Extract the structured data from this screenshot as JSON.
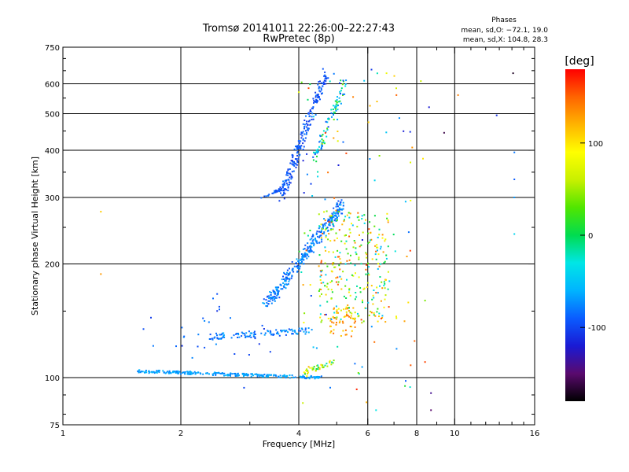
{
  "chart_data": {
    "type": "scatter",
    "title": "Tromsø 20141011 22:26:00–22:27:43",
    "subtitle": "RwPretec (8p)",
    "xlabel": "Frequency [MHz]",
    "ylabel": "Stationary phase Virtual Height [km]",
    "x_scale": "log",
    "y_scale": "log",
    "xlim": [
      1,
      16
    ],
    "ylim": [
      75,
      750
    ],
    "x_ticks": [
      1,
      2,
      4,
      6,
      8,
      10,
      16
    ],
    "y_ticks": [
      75,
      100,
      200,
      300,
      400,
      500,
      600,
      750
    ],
    "x_gridlines": [
      2,
      4,
      6,
      8,
      10
    ],
    "y_gridlines": [
      100,
      200,
      300,
      400,
      500,
      600
    ],
    "grid": true,
    "stats": {
      "heading": "Phases",
      "line1": "mean, sd,O: −72.1, 19.0",
      "line2": "mean, sd,X: 104.8, 28.3"
    },
    "colorbar": {
      "label": "[deg]",
      "min": -180,
      "max": 180,
      "ticks": [
        100,
        0,
        -100
      ],
      "colormap": [
        "#000000",
        "#5a0a6e",
        "#1a1ad4",
        "#0a5cff",
        "#00b4ff",
        "#00e6e6",
        "#00dc50",
        "#50e600",
        "#c8f000",
        "#ffff00",
        "#ffb400",
        "#ff6400",
        "#ff0000"
      ]
    },
    "clusters": [
      {
        "name": "e-trace",
        "shape": "line",
        "x_range": [
          1.55,
          4.6
        ],
        "y_range": [
          104,
          100
        ],
        "phase": [
          -80,
          -55
        ],
        "count": 260,
        "spread": 0.012
      },
      {
        "name": "e-trace-rise",
        "shape": "line",
        "x_range": [
          4.1,
          4.9
        ],
        "y_range": [
          103,
          110
        ],
        "phase": [
          -20,
          120
        ],
        "count": 40,
        "spread": 0.02
      },
      {
        "name": "o-trace-lower",
        "shape": "line",
        "x_range": [
          2.3,
          4.3
        ],
        "y_range": [
          128,
          133
        ],
        "phase": [
          -95,
          -60
        ],
        "count": 110,
        "spread": 0.025
      },
      {
        "name": "o-trace-middle",
        "shape": "line",
        "x_range": [
          3.3,
          5.2
        ],
        "y_range": [
          155,
          290
        ],
        "phase": [
          -100,
          -60
        ],
        "count": 320,
        "spread": 0.045
      },
      {
        "name": "o-trace-upper",
        "shape": "line",
        "x_range": [
          3.6,
          4.7
        ],
        "y_range": [
          300,
          640
        ],
        "phase": [
          -110,
          -80
        ],
        "count": 220,
        "spread": 0.04
      },
      {
        "name": "o-trace-upper-ext",
        "shape": "line",
        "x_range": [
          4.4,
          5.3
        ],
        "y_range": [
          380,
          620
        ],
        "phase": [
          -100,
          40
        ],
        "count": 90,
        "spread": 0.035
      },
      {
        "name": "side-arc",
        "shape": "line",
        "x_range": [
          3.2,
          3.6
        ],
        "y_range": [
          300,
          315
        ],
        "phase": [
          -100,
          -80
        ],
        "count": 25,
        "spread": 0.01
      },
      {
        "name": "x-trace",
        "shape": "blob",
        "x_range": [
          4.5,
          6.8
        ],
        "y_range": [
          140,
          280
        ],
        "phase": [
          -60,
          160
        ],
        "count": 280,
        "spread": 0.0
      },
      {
        "name": "x-trace-low",
        "shape": "blob",
        "x_range": [
          4.8,
          5.6
        ],
        "y_range": [
          128,
          155
        ],
        "phase": [
          100,
          150
        ],
        "count": 50,
        "spread": 0.0
      },
      {
        "name": "scatter-noise",
        "shape": "blob",
        "x_range": [
          4.0,
          7.8
        ],
        "y_range": [
          85,
          660
        ],
        "phase": [
          -120,
          170
        ],
        "count": 120,
        "spread": 0.0
      },
      {
        "name": "low-dots",
        "shape": "blob",
        "x_range": [
          1.6,
          3.4
        ],
        "y_range": [
          112,
          170
        ],
        "phase": [
          -110,
          -70
        ],
        "count": 30,
        "spread": 0.0
      }
    ],
    "isolated_points": [
      {
        "x": 1.25,
        "y": 275,
        "phase": 110
      },
      {
        "x": 1.25,
        "y": 188,
        "phase": 130
      },
      {
        "x": 2.9,
        "y": 94,
        "phase": -100
      },
      {
        "x": 8.2,
        "y": 610,
        "phase": 60
      },
      {
        "x": 8.6,
        "y": 520,
        "phase": -120
      },
      {
        "x": 9.4,
        "y": 445,
        "phase": -160
      },
      {
        "x": 10.2,
        "y": 560,
        "phase": 140
      },
      {
        "x": 12.8,
        "y": 495,
        "phase": -110
      },
      {
        "x": 14.1,
        "y": 640,
        "phase": -170
      },
      {
        "x": 14.2,
        "y": 395,
        "phase": -80
      },
      {
        "x": 14.2,
        "y": 335,
        "phase": -90
      },
      {
        "x": 14.2,
        "y": 300,
        "phase": -70
      },
      {
        "x": 14.2,
        "y": 240,
        "phase": -40
      },
      {
        "x": 8.7,
        "y": 91,
        "phase": -140
      },
      {
        "x": 8.7,
        "y": 82,
        "phase": -150
      },
      {
        "x": 8.4,
        "y": 110,
        "phase": 160
      },
      {
        "x": 8.3,
        "y": 380,
        "phase": 100
      },
      {
        "x": 7.1,
        "y": 560,
        "phase": 150
      },
      {
        "x": 6.7,
        "y": 640,
        "phase": 80
      },
      {
        "x": 7.5,
        "y": 98,
        "phase": -90
      },
      {
        "x": 6.3,
        "y": 82,
        "phase": -30
      },
      {
        "x": 8.4,
        "y": 160,
        "phase": 40
      },
      {
        "x": 7.9,
        "y": 125,
        "phase": 150
      }
    ]
  }
}
